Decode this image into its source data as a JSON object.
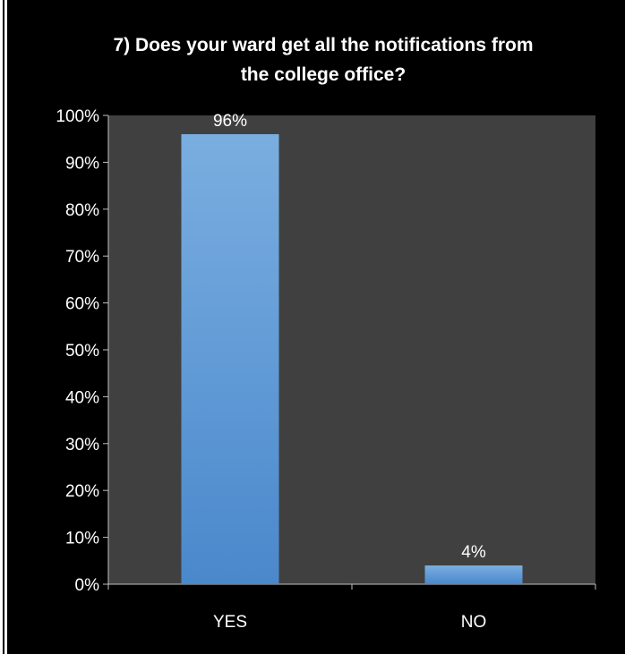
{
  "chart_data": {
    "type": "bar",
    "title_lines": [
      "7) Does your ward get all the notifications from",
      "the college office?"
    ],
    "categories": [
      "YES",
      "NO"
    ],
    "values": [
      96,
      4
    ],
    "data_labels": [
      "96%",
      "4%"
    ],
    "y_ticks": [
      "0%",
      "10%",
      "20%",
      "30%",
      "40%",
      "50%",
      "60%",
      "70%",
      "80%",
      "90%",
      "100%"
    ],
    "ylim": [
      0,
      100
    ],
    "grid": false,
    "legend": "none",
    "colors": {
      "background": "#000000",
      "plot_area": "#404040",
      "bar_top": "#7aaee0",
      "bar_bottom": "#4a88cc",
      "text": "#ffffff",
      "axis": "#bfbfbf"
    }
  }
}
